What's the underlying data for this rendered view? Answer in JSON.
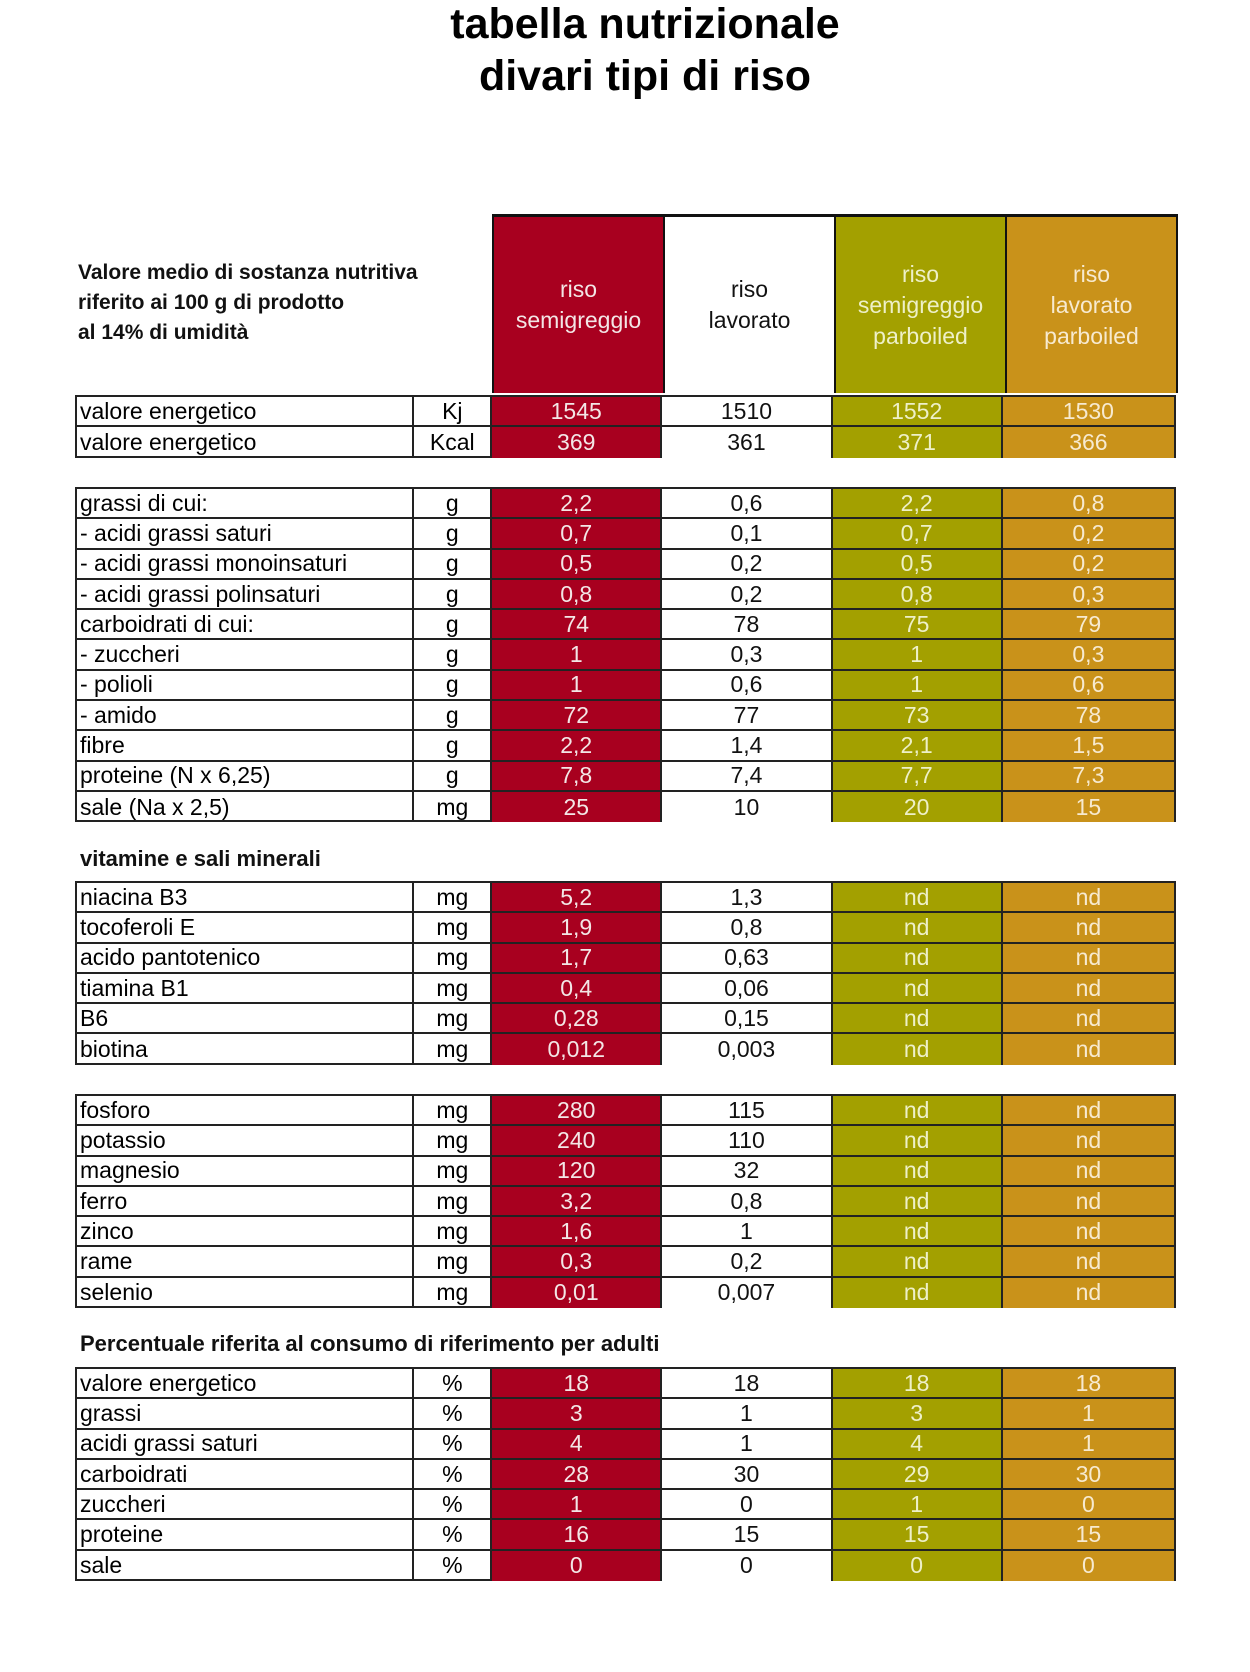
{
  "title": {
    "line1": "tabella nutrizionale",
    "line2": "divari tipi di riso"
  },
  "header_note": {
    "line1": "Valore medio di sostanza nutritiva",
    "line2": "riferito ai 100 g di prodotto",
    "line3": "al 14% di umidità"
  },
  "colors": {
    "riso_semigreggio": "#a8001f",
    "riso_lavorato": "#ffffff",
    "riso_semigreggio_parboiled": "#a3a000",
    "riso_lavorato_parboiled": "#c9921a"
  },
  "columns": [
    {
      "line1": "riso",
      "line2": "semigreggio",
      "line3": ""
    },
    {
      "line1": "riso",
      "line2": "lavorato",
      "line3": ""
    },
    {
      "line1": "riso",
      "line2": "semigreggio",
      "line3": "parboiled"
    },
    {
      "line1": "riso",
      "line2": "lavorato",
      "line3": "parboiled"
    }
  ],
  "groups": [
    {
      "heading": "",
      "rows": [
        {
          "label": "valore energetico",
          "unit": "Kj",
          "values": [
            "1545",
            "1510",
            "1552",
            "1530"
          ]
        },
        {
          "label": "valore energetico",
          "unit": "Kcal",
          "values": [
            "369",
            "361",
            "371",
            "366"
          ]
        }
      ]
    },
    {
      "heading": "",
      "rows": [
        {
          "label": "grassi di cui:",
          "unit": "g",
          "values": [
            "2,2",
            "0,6",
            "2,2",
            "0,8"
          ]
        },
        {
          "label": " - acidi grassi saturi",
          "unit": "g",
          "values": [
            "0,7",
            "0,1",
            "0,7",
            "0,2"
          ]
        },
        {
          "label": " - acidi grassi monoinsaturi",
          "unit": "g",
          "values": [
            "0,5",
            "0,2",
            "0,5",
            "0,2"
          ]
        },
        {
          "label": " - acidi grassi polinsaturi",
          "unit": "g",
          "values": [
            "0,8",
            "0,2",
            "0,8",
            "0,3"
          ]
        },
        {
          "label": "carboidrati di cui:",
          "unit": "g",
          "values": [
            "74",
            "78",
            "75",
            "79"
          ]
        },
        {
          "label": " - zuccheri",
          "unit": "g",
          "values": [
            "1",
            "0,3",
            "1",
            "0,3"
          ]
        },
        {
          "label": " - polioli",
          "unit": "g",
          "values": [
            "1",
            "0,6",
            "1",
            "0,6"
          ]
        },
        {
          "label": " - amido",
          "unit": "g",
          "values": [
            "72",
            "77",
            "73",
            "78"
          ]
        },
        {
          "label": "fibre",
          "unit": "g",
          "values": [
            "2,2",
            "1,4",
            "2,1",
            "1,5"
          ]
        },
        {
          "label": "proteine (N x 6,25)",
          "unit": "g",
          "values": [
            "7,8",
            "7,4",
            "7,7",
            "7,3"
          ]
        },
        {
          "label": "sale (Na x 2,5)",
          "unit": "mg",
          "values": [
            "25",
            "10",
            "20",
            "15"
          ]
        }
      ]
    },
    {
      "heading": "vitamine e sali minerali",
      "rows": [
        {
          "label": "niacina B3",
          "unit": "mg",
          "values": [
            "5,2",
            "1,3",
            "nd",
            "nd"
          ]
        },
        {
          "label": "tocoferoli E",
          "unit": "mg",
          "values": [
            "1,9",
            "0,8",
            "nd",
            "nd"
          ]
        },
        {
          "label": "acido pantotenico",
          "unit": "mg",
          "values": [
            "1,7",
            "0,63",
            "nd",
            "nd"
          ]
        },
        {
          "label": "tiamina B1",
          "unit": "mg",
          "values": [
            "0,4",
            "0,06",
            "nd",
            "nd"
          ]
        },
        {
          "label": "B6",
          "unit": "mg",
          "values": [
            "0,28",
            "0,15",
            "nd",
            "nd"
          ]
        },
        {
          "label": "biotina",
          "unit": "mg",
          "values": [
            "0,012",
            "0,003",
            "nd",
            "nd"
          ]
        }
      ]
    },
    {
      "heading": "",
      "rows": [
        {
          "label": "fosforo",
          "unit": "mg",
          "values": [
            "280",
            "115",
            "nd",
            "nd"
          ]
        },
        {
          "label": "potassio",
          "unit": "mg",
          "values": [
            "240",
            "110",
            "nd",
            "nd"
          ]
        },
        {
          "label": "magnesio",
          "unit": "mg",
          "values": [
            "120",
            "32",
            "nd",
            "nd"
          ]
        },
        {
          "label": "ferro",
          "unit": "mg",
          "values": [
            "3,2",
            "0,8",
            "nd",
            "nd"
          ]
        },
        {
          "label": "zinco",
          "unit": "mg",
          "values": [
            "1,6",
            "1",
            "nd",
            "nd"
          ]
        },
        {
          "label": "rame",
          "unit": "mg",
          "values": [
            "0,3",
            "0,2",
            "nd",
            "nd"
          ]
        },
        {
          "label": "selenio",
          "unit": "mg",
          "values": [
            "0,01",
            "0,007",
            "nd",
            "nd"
          ]
        }
      ]
    },
    {
      "heading": "Percentuale riferita al consumo di riferimento per adulti",
      "rows": [
        {
          "label": "valore energetico",
          "unit": "%",
          "values": [
            "18",
            "18",
            "18",
            "18"
          ]
        },
        {
          "label": "grassi",
          "unit": "%",
          "values": [
            "3",
            "1",
            "3",
            "1"
          ]
        },
        {
          "label": "acidi grassi saturi",
          "unit": "%",
          "values": [
            "4",
            "1",
            "4",
            "1"
          ]
        },
        {
          "label": "carboidrati",
          "unit": "%",
          "values": [
            "28",
            "30",
            "29",
            "30"
          ]
        },
        {
          "label": "zuccheri",
          "unit": "%",
          "values": [
            "1",
            "0",
            "1",
            "0"
          ]
        },
        {
          "label": "proteine",
          "unit": "%",
          "values": [
            "16",
            "15",
            "15",
            "15"
          ]
        },
        {
          "label": "sale",
          "unit": "%",
          "values": [
            "0",
            "0",
            "0",
            "0"
          ]
        }
      ]
    }
  ]
}
